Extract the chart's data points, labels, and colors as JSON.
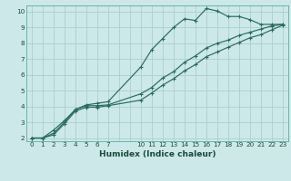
{
  "xlabel": "Humidex (Indice chaleur)",
  "bg_color": "#cce8e8",
  "grid_color": "#aacfcf",
  "line_color": "#2a6b5e",
  "xlim": [
    -0.5,
    23.5
  ],
  "ylim": [
    1.8,
    10.4
  ],
  "xtick_positions": [
    0,
    1,
    2,
    3,
    4,
    5,
    6,
    7,
    10,
    11,
    12,
    13,
    14,
    15,
    16,
    17,
    18,
    19,
    20,
    21,
    22,
    23
  ],
  "xtick_labels": [
    "0",
    "1",
    "2",
    "3",
    "4",
    "5",
    "6",
    "7",
    "10",
    "11",
    "12",
    "13",
    "14",
    "15",
    "16",
    "17",
    "18",
    "19",
    "20",
    "21",
    "22",
    "23"
  ],
  "ytick_positions": [
    2,
    3,
    4,
    5,
    6,
    7,
    8,
    9,
    10
  ],
  "ytick_labels": [
    "2",
    "3",
    "4",
    "5",
    "6",
    "7",
    "8",
    "9",
    "10"
  ],
  "series1_x": [
    0,
    1,
    2,
    3,
    4,
    5,
    6,
    7,
    10,
    11,
    12,
    13,
    14,
    15,
    16,
    17,
    18,
    19,
    20,
    21,
    22,
    23
  ],
  "series1_y": [
    2.0,
    2.0,
    2.5,
    3.1,
    3.8,
    4.1,
    4.2,
    4.3,
    6.5,
    7.6,
    8.3,
    9.0,
    9.55,
    9.45,
    10.2,
    10.05,
    9.7,
    9.7,
    9.5,
    9.2,
    9.2,
    9.2
  ],
  "series2_x": [
    0,
    1,
    2,
    3,
    4,
    5,
    6,
    7,
    10,
    11,
    12,
    13,
    14,
    15,
    16,
    17,
    18,
    19,
    20,
    21,
    22,
    23
  ],
  "series2_y": [
    2.0,
    2.0,
    2.3,
    3.0,
    3.8,
    4.05,
    4.05,
    4.1,
    4.8,
    5.2,
    5.8,
    6.2,
    6.8,
    7.2,
    7.7,
    8.0,
    8.2,
    8.5,
    8.7,
    8.9,
    9.1,
    9.2
  ],
  "series3_x": [
    0,
    1,
    2,
    3,
    4,
    5,
    6,
    7,
    10,
    11,
    12,
    13,
    14,
    15,
    16,
    17,
    18,
    19,
    20,
    21,
    22,
    23
  ],
  "series3_y": [
    2.0,
    2.0,
    2.2,
    2.9,
    3.7,
    3.95,
    3.95,
    4.05,
    4.4,
    4.85,
    5.35,
    5.75,
    6.25,
    6.65,
    7.15,
    7.45,
    7.75,
    8.05,
    8.35,
    8.55,
    8.85,
    9.15
  ],
  "xlabel_fontsize": 6.5,
  "tick_fontsize": 5.2,
  "linewidth": 0.85,
  "markersize": 3.0
}
